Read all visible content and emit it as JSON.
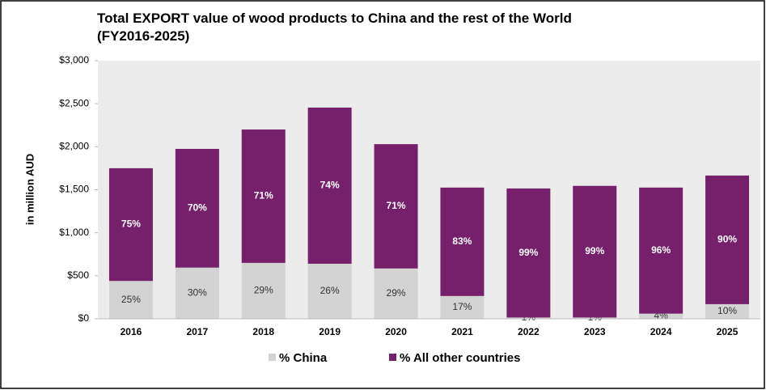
{
  "chart_data": {
    "type": "stacked_bar",
    "title": "Total EXPORT value of wood products to China and the rest of the World",
    "subtitle": "(FY2016-2025)",
    "y_label": "in million AUD",
    "categories": [
      "2016",
      "2017",
      "2018",
      "2019",
      "2020",
      "2021",
      "2022",
      "2023",
      "2024",
      "2025"
    ],
    "series": [
      {
        "name": "% China",
        "color": "#d3d3d3",
        "values": [
          440,
          595,
          650,
          640,
          585,
          265,
          15,
          15,
          60,
          170
        ],
        "labels": [
          "25%",
          "30%",
          "29%",
          "26%",
          "29%",
          "17%",
          "1%",
          "1%",
          "4%",
          "10%"
        ]
      },
      {
        "name": "% All other countries",
        "color": "#76206b",
        "values": [
          1310,
          1380,
          1550,
          1815,
          1445,
          1260,
          1500,
          1530,
          1465,
          1495
        ],
        "labels": [
          "75%",
          "70%",
          "71%",
          "74%",
          "71%",
          "83%",
          "99%",
          "99%",
          "96%",
          "90%"
        ]
      }
    ],
    "ylim": [
      0,
      3000
    ],
    "yticks": [
      {
        "value": 0,
        "label": "$0"
      },
      {
        "value": 500,
        "label": "$500"
      },
      {
        "value": 1000,
        "label": "$1,000"
      },
      {
        "value": 1500,
        "label": "$1,500"
      },
      {
        "value": 2000,
        "label": "$2,000"
      },
      {
        "value": 2500,
        "label": "$2,500"
      },
      {
        "value": 3000,
        "label": "$3,000"
      }
    ],
    "grid": false
  }
}
